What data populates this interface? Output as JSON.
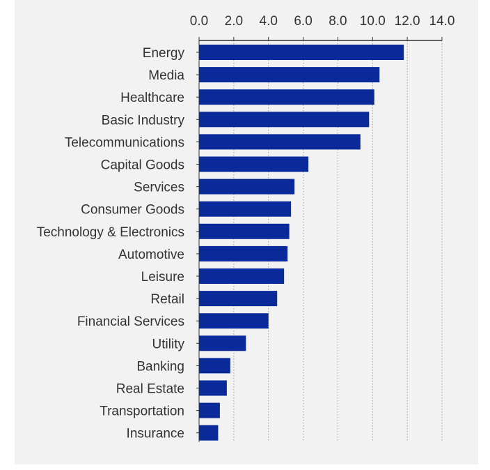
{
  "chart_data": {
    "type": "bar",
    "orientation": "horizontal",
    "title": "",
    "xlabel": "",
    "ylabel": "",
    "categories": [
      "Energy",
      "Media",
      "Healthcare",
      "Basic Industry",
      "Telecommunications",
      "Capital Goods",
      "Services",
      "Consumer Goods",
      "Technology & Electronics",
      "Automotive",
      "Leisure",
      "Retail",
      "Financial Services",
      "Utility",
      "Banking",
      "Real Estate",
      "Transportation",
      "Insurance"
    ],
    "values": [
      11.8,
      10.4,
      10.1,
      9.8,
      9.3,
      6.3,
      5.5,
      5.3,
      5.2,
      5.1,
      4.9,
      4.5,
      4.0,
      2.7,
      1.8,
      1.6,
      1.2,
      1.1
    ],
    "xlim": [
      0,
      14
    ],
    "ticks": [
      "0.0",
      "2.0",
      "4.0",
      "6.0",
      "8.0",
      "10.0",
      "12.0",
      "14.0"
    ],
    "tick_values": [
      0,
      2,
      4,
      6,
      8,
      10,
      12,
      14
    ],
    "axis_position": "top",
    "grid": "vertical dotted",
    "bar_color": "#0a2a9a",
    "background_color": "#f2f2f2"
  }
}
